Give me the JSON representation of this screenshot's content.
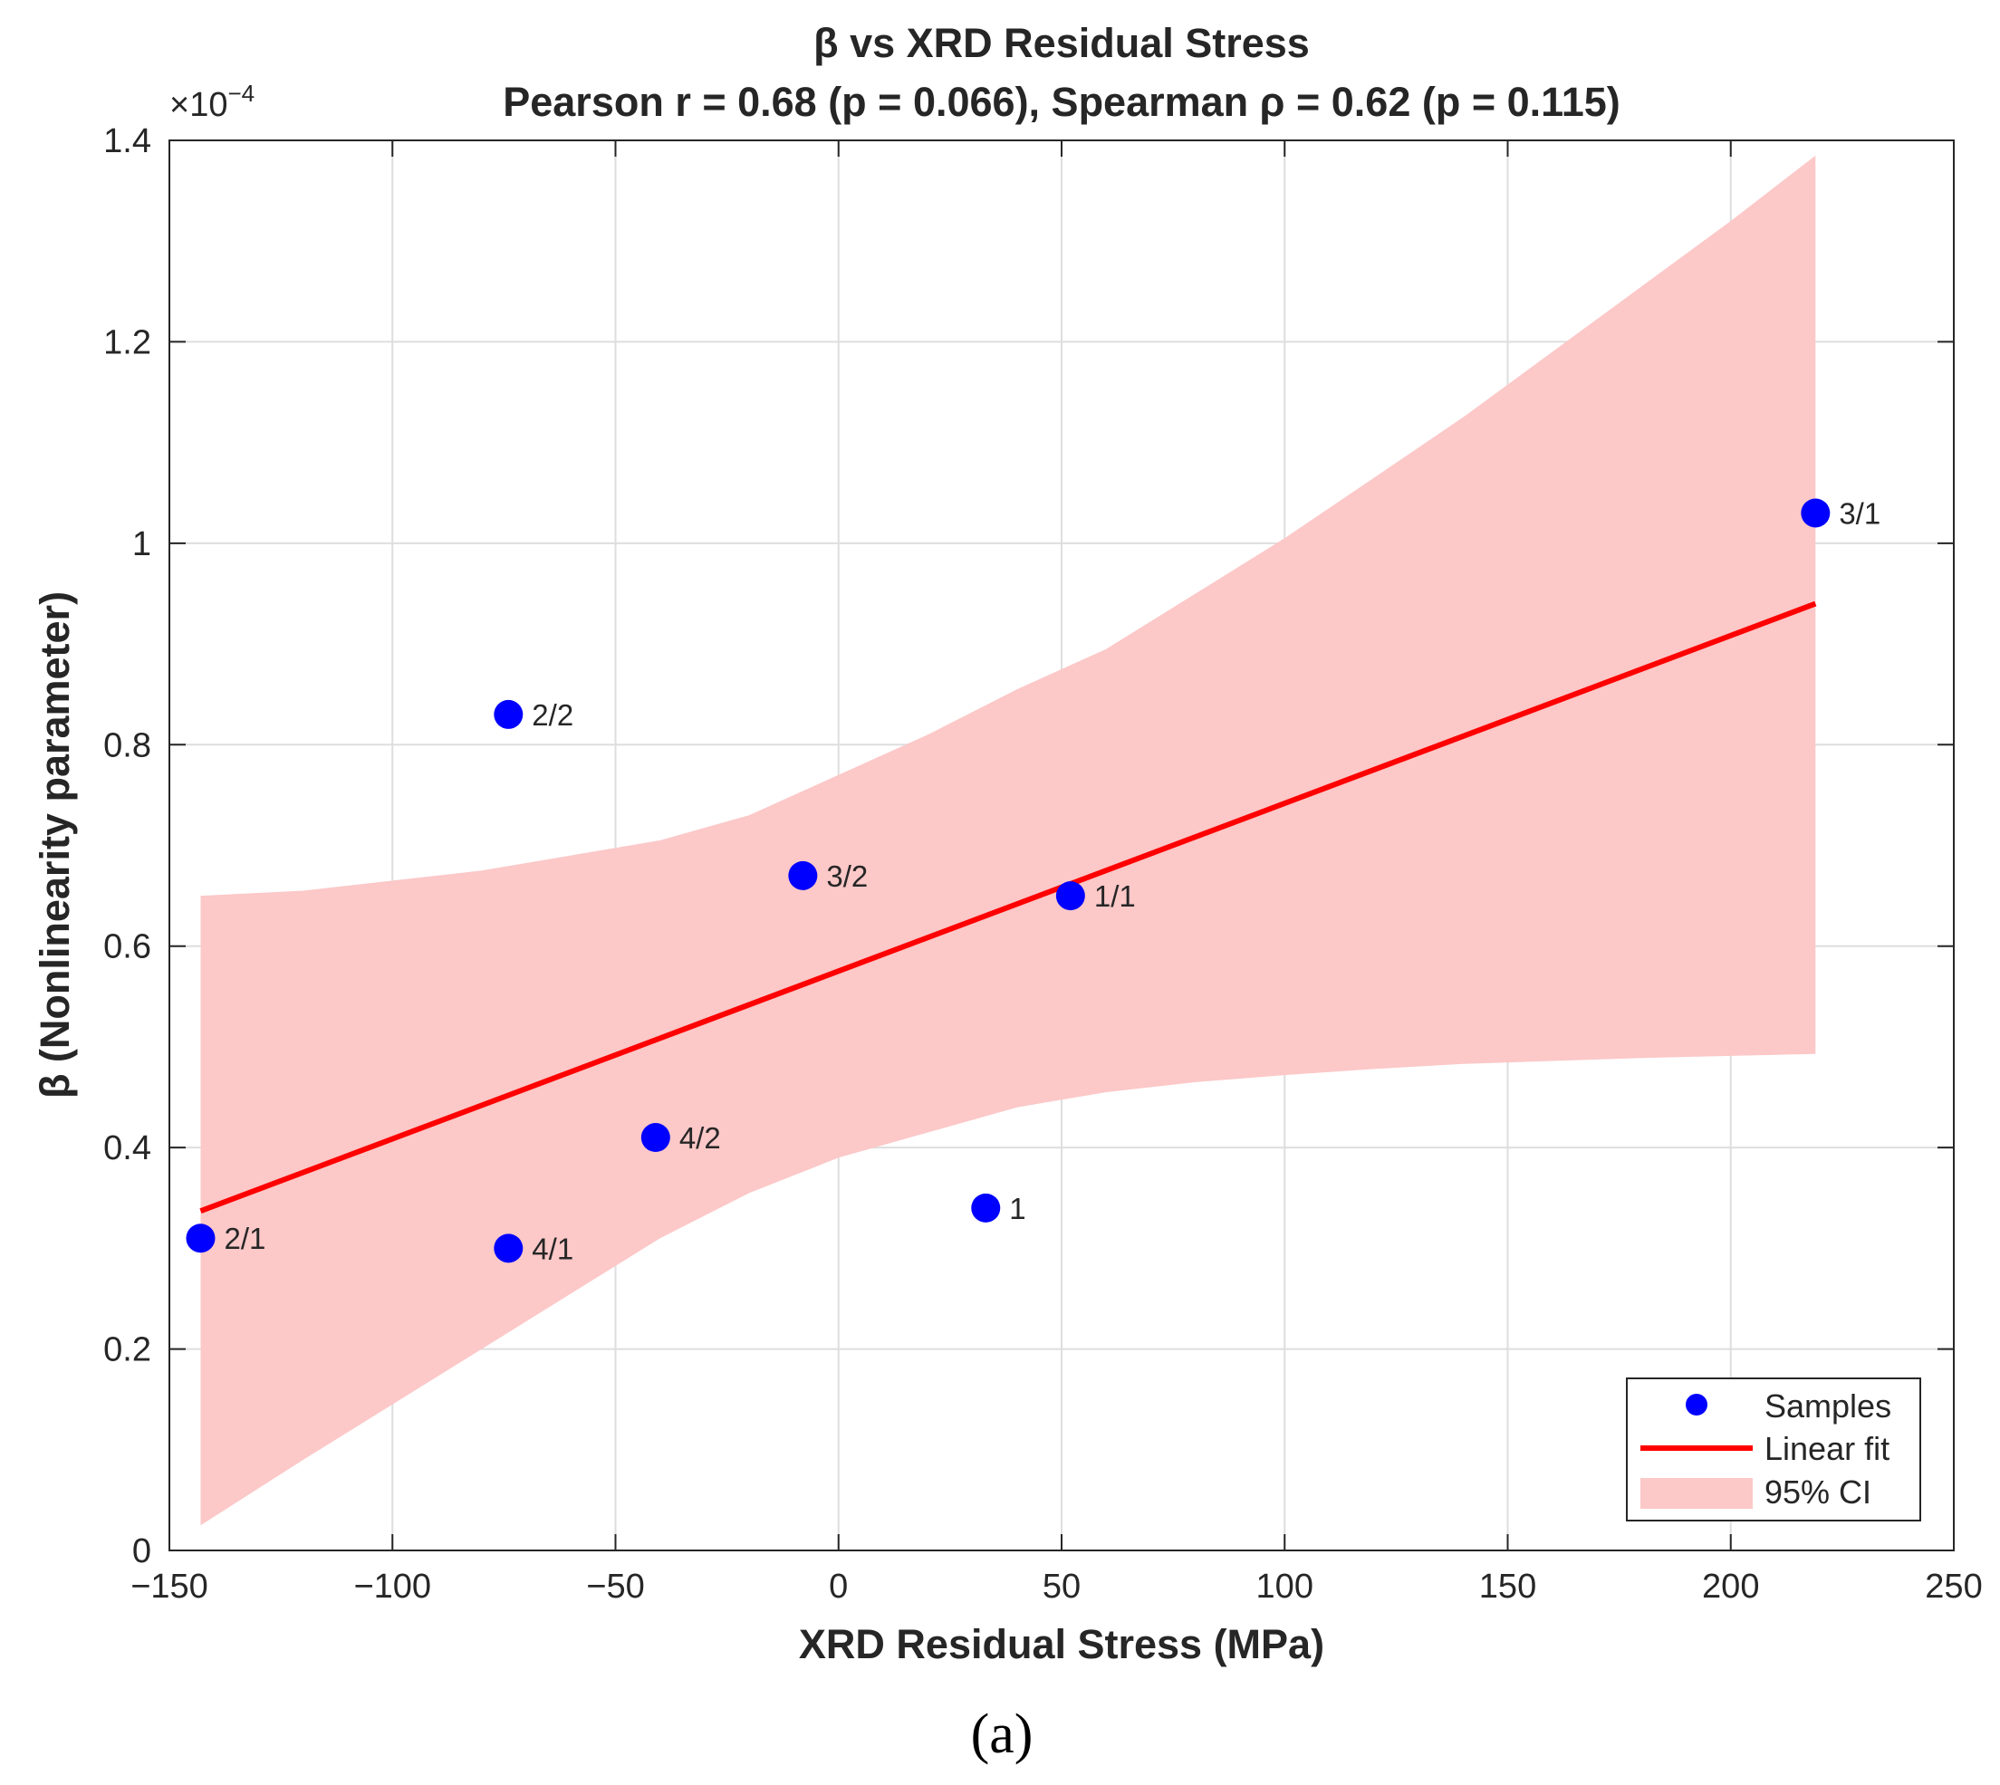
{
  "chart_data": {
    "type": "scatter",
    "title": "β vs XRD Residual Stress",
    "subtitle": "Pearson r = 0.68 (p = 0.066), Spearman ρ = 0.62 (p = 0.115)",
    "xlabel": "XRD Residual Stress (MPa)",
    "ylabel": "β (Nonlinearity parameter)",
    "y_exponent_label": "×10",
    "y_exponent_power": "−4",
    "xlim": [
      -150,
      250
    ],
    "ylim": [
      0,
      1.4
    ],
    "x_ticks": [
      -150,
      -100,
      -50,
      0,
      50,
      100,
      150,
      200,
      250
    ],
    "x_tick_labels": [
      "−150",
      "−100",
      "−50",
      "0",
      "50",
      "100",
      "150",
      "200",
      "250"
    ],
    "y_ticks": [
      0,
      0.2,
      0.4,
      0.6,
      0.8,
      1.0,
      1.2,
      1.4
    ],
    "y_tick_labels": [
      "0",
      "0.2",
      "0.4",
      "0.6",
      "0.8",
      "1",
      "1.2",
      "1.4"
    ],
    "grid": true,
    "caption": "(a)",
    "samples": {
      "name": "Samples",
      "color": "#0000ff",
      "points": [
        {
          "label": "2/1",
          "x": -143,
          "y": 0.31
        },
        {
          "label": "2/2",
          "x": -74,
          "y": 0.83
        },
        {
          "label": "4/1",
          "x": -74,
          "y": 0.3
        },
        {
          "label": "4/2",
          "x": -41,
          "y": 0.41
        },
        {
          "label": "3/2",
          "x": -8,
          "y": 0.67
        },
        {
          "label": "1",
          "x": 33,
          "y": 0.34
        },
        {
          "label": "1/1",
          "x": 52,
          "y": 0.65
        },
        {
          "label": "3/1",
          "x": 219,
          "y": 1.03
        }
      ]
    },
    "fit": {
      "name": "Linear fit",
      "color": "#ff0000",
      "x": [
        -143,
        219
      ],
      "y": [
        0.337,
        0.94
      ]
    },
    "ci": {
      "name": "95% CI",
      "color": "#fcc8c8",
      "x": [
        -143,
        -120,
        -100,
        -80,
        -60,
        -40,
        -20,
        0,
        20,
        40,
        60,
        80,
        100,
        120,
        140,
        160,
        180,
        200,
        219
      ],
      "upper": [
        0.65,
        0.655,
        0.665,
        0.675,
        0.69,
        0.705,
        0.73,
        0.77,
        0.81,
        0.855,
        0.895,
        0.95,
        1.005,
        1.065,
        1.125,
        1.19,
        1.255,
        1.32,
        1.385
      ],
      "lower": [
        0.025,
        0.09,
        0.145,
        0.2,
        0.255,
        0.31,
        0.355,
        0.39,
        0.415,
        0.44,
        0.455,
        0.465,
        0.472,
        0.478,
        0.483,
        0.486,
        0.489,
        0.491,
        0.493
      ]
    },
    "legend": {
      "location": "bottom-right",
      "entries": [
        "Samples",
        "Linear fit",
        "95% CI"
      ]
    }
  }
}
